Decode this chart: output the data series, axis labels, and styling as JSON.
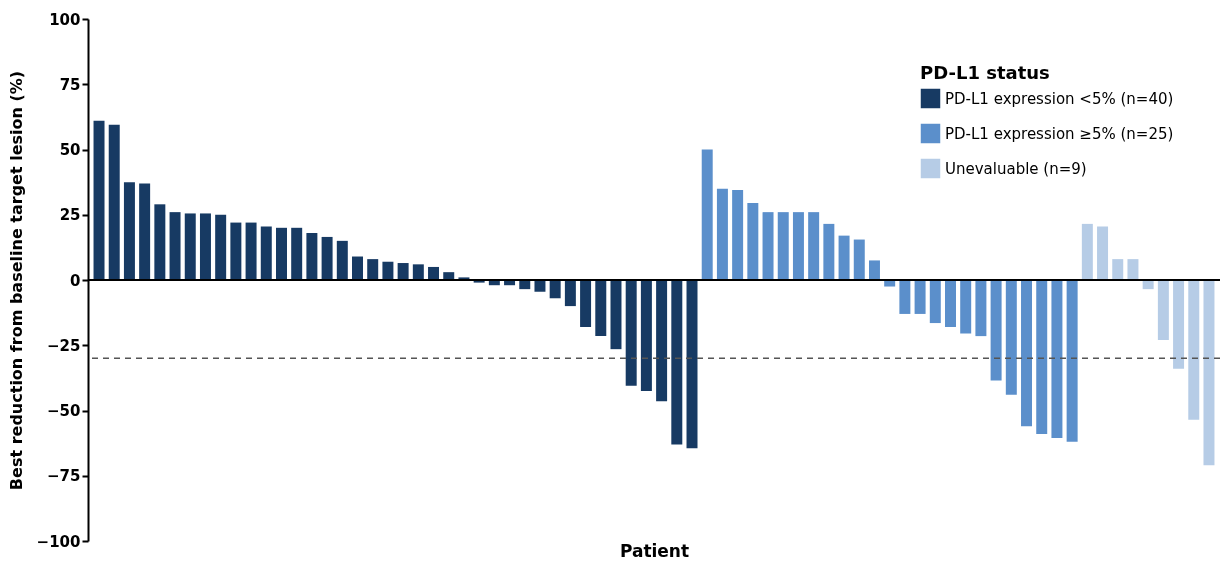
{
  "chart_data": {
    "type": "bar",
    "xlabel": "Patient",
    "ylabel": "Best reduction from baseline target lesion (%)",
    "legend_title": "PD-L1 status",
    "legend": "top right",
    "grid": false,
    "tick_labels": "y",
    "categories": [
      null,
      null,
      null,
      null,
      null,
      null,
      null,
      null,
      null,
      null,
      null,
      null,
      null,
      null,
      null,
      null,
      null,
      null,
      null,
      null,
      null,
      null,
      null,
      null,
      null,
      null,
      null,
      null,
      null,
      null,
      null,
      null,
      null,
      null,
      null,
      null,
      null,
      null,
      null,
      null,
      null,
      null,
      null,
      null,
      null,
      null,
      null,
      null,
      null,
      null,
      null,
      null,
      null,
      null,
      null,
      null,
      null,
      null,
      null,
      null,
      null,
      null,
      null,
      null,
      null,
      null,
      null,
      null,
      null,
      null,
      null,
      null,
      null,
      null
    ],
    "ylim": [
      -100,
      100
    ],
    "yticks": [
      -100,
      -75,
      -50,
      -25,
      0,
      25,
      50,
      75,
      100
    ],
    "series": [
      {
        "name": "PD-L1 expression <5% (n=40)",
        "color": "#173a63",
        "values": [
          61,
          59.5,
          37.5,
          37,
          29,
          26,
          25.5,
          25.5,
          25,
          22,
          22,
          20.5,
          20,
          20,
          18,
          16.5,
          15,
          9,
          8,
          7,
          6.5,
          6,
          5,
          3,
          1,
          -1,
          -2,
          -2,
          -3.5,
          -4.5,
          -7,
          -10,
          -18,
          -21.5,
          -26.5,
          -40.5,
          -42.5,
          -46.5,
          -63,
          -64.5,
          null,
          null,
          null,
          null,
          null,
          null,
          null,
          null,
          null,
          null,
          null,
          null,
          null,
          null,
          null,
          null,
          null,
          null,
          null,
          null,
          null,
          null,
          null,
          null,
          null,
          null,
          null,
          null,
          null,
          null,
          null,
          null,
          null,
          null
        ]
      },
      {
        "name": "PD-L1 expression ≥5% (n=25)",
        "color": "#5b8fcb",
        "values": [
          null,
          null,
          null,
          null,
          null,
          null,
          null,
          null,
          null,
          null,
          null,
          null,
          null,
          null,
          null,
          null,
          null,
          null,
          null,
          null,
          null,
          null,
          null,
          null,
          null,
          null,
          null,
          null,
          null,
          null,
          null,
          null,
          null,
          null,
          null,
          null,
          null,
          null,
          null,
          null,
          50,
          35,
          34.5,
          29.5,
          26,
          26,
          26,
          26,
          21.5,
          17,
          15.5,
          7.5,
          -2.5,
          -13,
          -13,
          -16.5,
          -18,
          -20.5,
          -21.5,
          -38.5,
          -44,
          -56,
          -59,
          -60.5,
          -62,
          null,
          null,
          null,
          null,
          null,
          null,
          null,
          null,
          null
        ]
      },
      {
        "name": "Unevaluable (n=9)",
        "color": "#b6cce6",
        "values": [
          null,
          null,
          null,
          null,
          null,
          null,
          null,
          null,
          null,
          null,
          null,
          null,
          null,
          null,
          null,
          null,
          null,
          null,
          null,
          null,
          null,
          null,
          null,
          null,
          null,
          null,
          null,
          null,
          null,
          null,
          null,
          null,
          null,
          null,
          null,
          null,
          null,
          null,
          null,
          null,
          null,
          null,
          null,
          null,
          null,
          null,
          null,
          null,
          null,
          null,
          null,
          null,
          null,
          null,
          null,
          null,
          null,
          null,
          null,
          null,
          null,
          null,
          null,
          null,
          null,
          21.5,
          20.5,
          8,
          8,
          -3.5,
          -23,
          -34,
          -53.5,
          -71
        ]
      }
    ],
    "ref_lines": [
      {
        "axis": "y",
        "value": 0,
        "color": "#000000",
        "line_style": "solid"
      },
      {
        "axis": "y",
        "value": -30,
        "color": "#555555",
        "line_style": "dashed"
      }
    ]
  }
}
